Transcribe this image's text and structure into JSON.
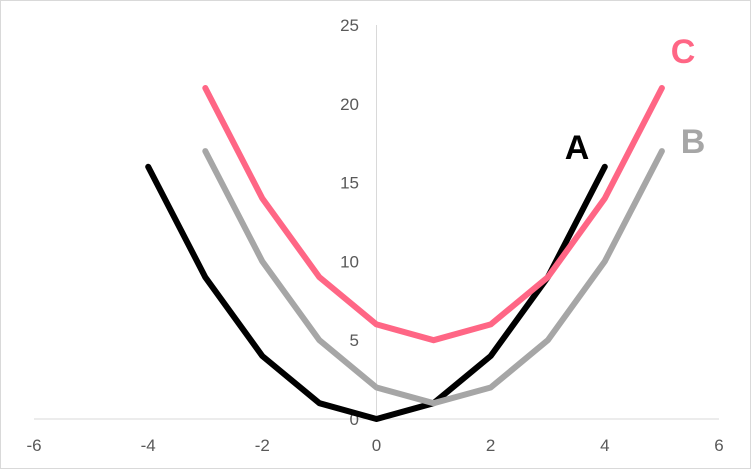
{
  "chart_data": {
    "type": "line",
    "xlim": [
      -6,
      6
    ],
    "ylim": [
      0,
      25
    ],
    "x_ticks": [
      "-6",
      "-4",
      "-2",
      "0",
      "2",
      "4",
      "6"
    ],
    "y_ticks": [
      "0",
      "5",
      "10",
      "15",
      "20",
      "25"
    ],
    "x_tick_values": [
      -6,
      -4,
      -2,
      0,
      2,
      4,
      6
    ],
    "y_tick_values": [
      0,
      5,
      10,
      15,
      20,
      25
    ],
    "grid": false,
    "legend": "none",
    "series": [
      {
        "name": "A",
        "color": "#000000",
        "x": [
          -4,
          -3,
          -2,
          -1,
          0,
          1,
          2,
          3,
          4
        ],
        "y": [
          16,
          9,
          4,
          1,
          0,
          1,
          4,
          9,
          16
        ]
      },
      {
        "name": "B",
        "color": "#a6a6a6",
        "x": [
          -3,
          -2,
          -1,
          0,
          1,
          2,
          3,
          4,
          5
        ],
        "y": [
          17,
          10,
          5,
          2,
          1,
          2,
          5,
          10,
          17
        ]
      },
      {
        "name": "C",
        "color": "#ff6685",
        "x": [
          -3,
          -2,
          -1,
          0,
          1,
          2,
          3,
          4,
          5
        ],
        "y": [
          21,
          14,
          9,
          6,
          5,
          6,
          9,
          14,
          21
        ]
      }
    ]
  }
}
